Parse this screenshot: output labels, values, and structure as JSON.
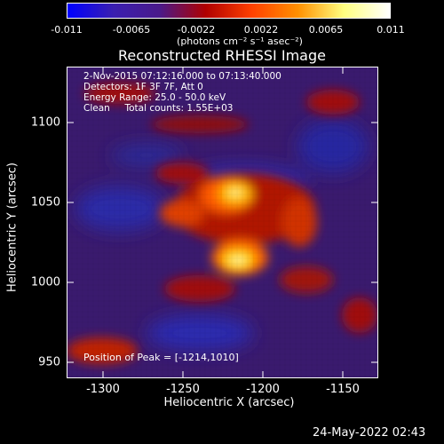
{
  "colorbar": {
    "tick_labels": [
      "-0.011",
      "-0.0065",
      "-0.0022",
      "0.0022",
      "0.0065",
      "0.011"
    ],
    "unit_label": "(photons cm⁻² s⁻¹ asec⁻²)",
    "colors": [
      "#0000ff",
      "#3a1fb0",
      "#4a1a8a",
      "#b00000",
      "#ff4000",
      "#ff9000",
      "#ffff80",
      "#ffffff"
    ]
  },
  "title": "Reconstructed RHESSI Image",
  "info": {
    "line1": "2-Nov-2015 07:12:16.000 to 07:13:40.000",
    "line2": "Detectors: 1F 3F 7F, Att 0",
    "line3": "Energy Range: 25.0 - 50.0 keV",
    "line4": "Clean     Total counts: 1.55E+03"
  },
  "peak": "Position of Peak = [-1214,1010]",
  "axes": {
    "xlabel": "Heliocentric X (arcsec)",
    "ylabel": "Heliocentric Y (arcsec)",
    "xticks": [
      "-1300",
      "-1250",
      "-1200",
      "-1150"
    ],
    "yticks": [
      "1100",
      "1050",
      "1000",
      "950"
    ]
  },
  "datestamp": "24-May-2022 02:43"
}
